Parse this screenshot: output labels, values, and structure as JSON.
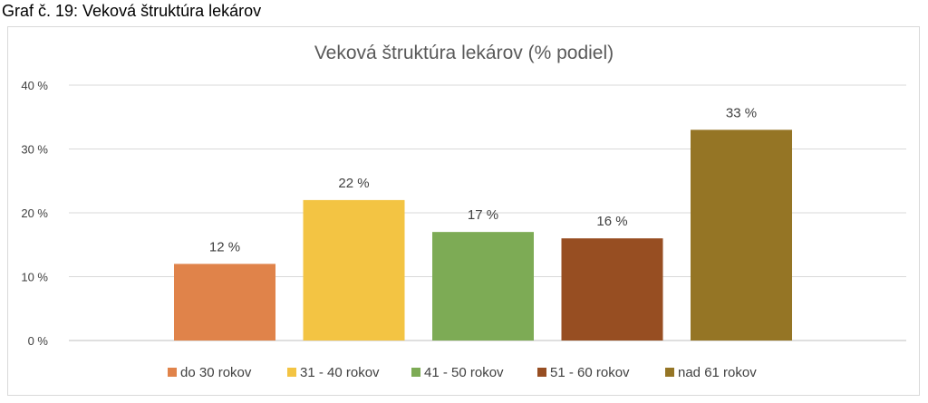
{
  "caption": "Graf č. 19: Veková štruktúra lekárov",
  "chart_data": {
    "type": "bar",
    "title": "Veková štruktúra lekárov (% podiel)",
    "xlabel": "",
    "ylabel": "",
    "categories": [
      "do 30 rokov",
      "31 - 40 rokov",
      "41 - 50 rokov",
      "51 - 60 rokov",
      "nad 61 rokov"
    ],
    "values": [
      12,
      22,
      17,
      16,
      33
    ],
    "data_labels": [
      "12 %",
      "22 %",
      "17 %",
      "16 %",
      "33 %"
    ],
    "colors": [
      "#e0834a",
      "#f3c443",
      "#7dab55",
      "#974e22",
      "#957525"
    ],
    "ylim": [
      0,
      40
    ],
    "yticks": [
      0,
      10,
      20,
      30,
      40
    ],
    "ytick_labels": [
      "0 %",
      "10 %",
      "20 %",
      "30 %",
      "40 %"
    ],
    "grid": true,
    "legend_position": "bottom"
  }
}
